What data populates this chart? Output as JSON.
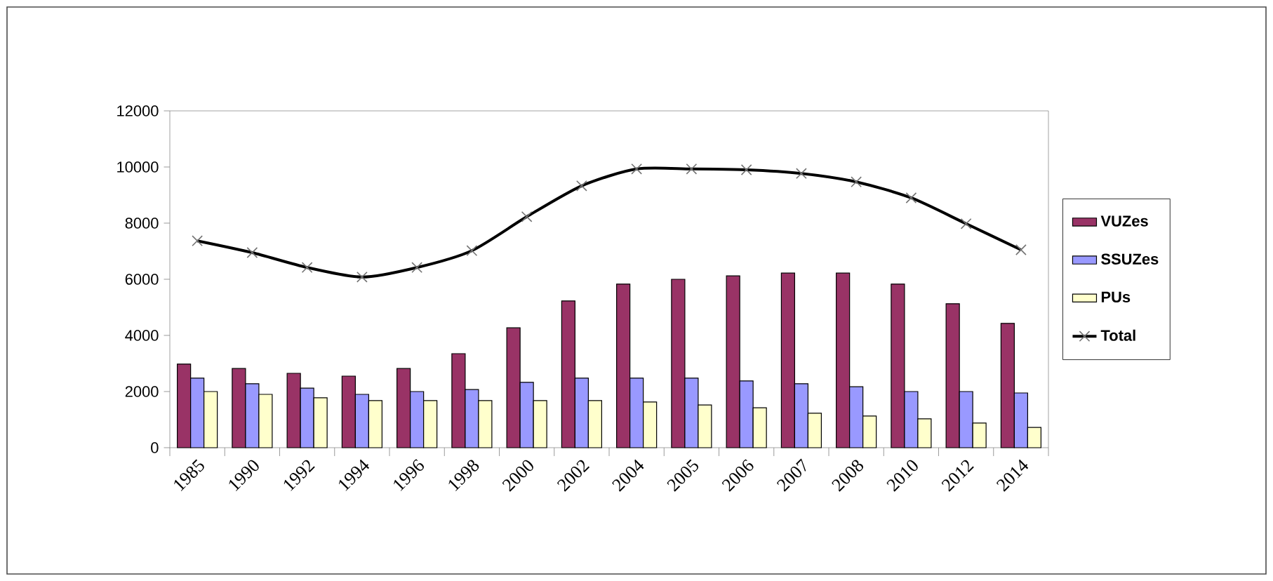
{
  "chart_data": {
    "type": "bar",
    "categories": [
      "1985",
      "1990",
      "1992",
      "1994",
      "1996",
      "1998",
      "2000",
      "2002",
      "2004",
      "2005",
      "2006",
      "2007",
      "2008",
      "2010",
      "2012",
      "2014"
    ],
    "series": [
      {
        "name": "VUZes",
        "color": "#993366",
        "values": [
          2980,
          2820,
          2650,
          2550,
          2820,
          3350,
          4270,
          5230,
          5830,
          6000,
          6120,
          6220,
          6220,
          5830,
          5130,
          4430
        ]
      },
      {
        "name": "SSUZes",
        "color": "#9999ff",
        "values": [
          2480,
          2280,
          2120,
          1900,
          2000,
          2070,
          2330,
          2480,
          2480,
          2480,
          2380,
          2280,
          2170,
          2000,
          2000,
          1950
        ]
      },
      {
        "name": "PUs",
        "color": "#ffffcc",
        "values": [
          2000,
          1900,
          1780,
          1680,
          1680,
          1680,
          1680,
          1680,
          1630,
          1520,
          1420,
          1230,
          1130,
          1030,
          880,
          720
        ]
      },
      {
        "name": "Total",
        "color": "#000000",
        "type": "line",
        "marker": "cross",
        "values": [
          7370,
          6950,
          6420,
          6080,
          6420,
          7020,
          8230,
          9330,
          9930,
          9930,
          9900,
          9770,
          9470,
          8900,
          7980,
          7050
        ]
      }
    ],
    "ylim": [
      0,
      12000
    ],
    "yticks": [
      0,
      2000,
      4000,
      6000,
      8000,
      10000,
      12000
    ],
    "legend": "right"
  }
}
